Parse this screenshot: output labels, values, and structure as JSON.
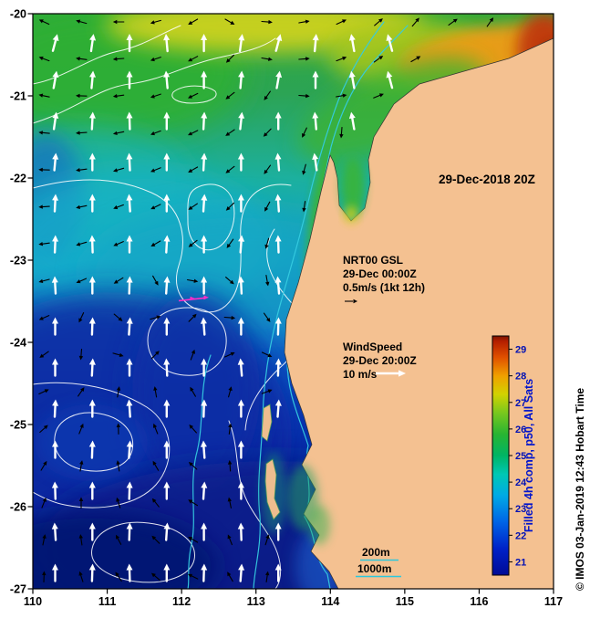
{
  "figure": {
    "datetime_label": "29-Dec-2018 20Z",
    "credit": "© IMOS 03-Jan-2019 12:43 Hobart Time"
  },
  "axes": {
    "x_ticks": [
      "110",
      "111",
      "112",
      "113",
      "114",
      "115",
      "116",
      "117"
    ],
    "y_ticks": [
      "-20",
      "-21",
      "-22",
      "-23",
      "-24",
      "-25",
      "-26",
      "-27"
    ]
  },
  "legends": {
    "current": [
      "NRT00 GSL",
      "29-Dec 00:00Z",
      "0.5m/s (1kt 12h)"
    ],
    "wind": [
      "WindSpeed",
      "29-Dec 20:00Z",
      "10 m/s"
    ],
    "bathymetry": [
      "200m",
      "1000m"
    ]
  },
  "colorbar": {
    "label": "Filled 4h comp, p50, All Sats",
    "ticks": [
      21,
      22,
      23,
      24,
      25,
      26,
      27,
      28,
      29
    ],
    "min": 20.5,
    "max": 29.5,
    "stops": [
      {
        "v": 20.5,
        "c": "#000a96"
      },
      {
        "v": 21.5,
        "c": "#0022c8"
      },
      {
        "v": 22.5,
        "c": "#0064e6"
      },
      {
        "v": 23.5,
        "c": "#00aae6"
      },
      {
        "v": 24.3,
        "c": "#00c8b4"
      },
      {
        "v": 25.0,
        "c": "#00b464"
      },
      {
        "v": 25.8,
        "c": "#28b432"
      },
      {
        "v": 26.6,
        "c": "#78c81e"
      },
      {
        "v": 27.3,
        "c": "#d2d200"
      },
      {
        "v": 28.0,
        "c": "#f0a000"
      },
      {
        "v": 28.7,
        "c": "#e05000"
      },
      {
        "v": 29.3,
        "c": "#b41e00"
      },
      {
        "v": 29.5,
        "c": "#781400"
      }
    ]
  },
  "map": {
    "lon_min": 110,
    "lon_max": 117,
    "lat_min": -27,
    "lat_max": -20,
    "land_color": "#f4c191",
    "wind_color": "#ffffff",
    "current_color": "#000000",
    "bathy_color": "#35cbe0",
    "track_color": "#ff2ec8"
  },
  "wind_field": {
    "rows": [
      {
        "lat": -20.35,
        "lon0": 110.3,
        "dlon": 0.5,
        "bearings": [
          15,
          8,
          0,
          355,
          0,
          8,
          15,
          5,
          350,
          345
        ]
      },
      {
        "lat": -20.8,
        "lon0": 110.3,
        "dlon": 0.5,
        "bearings": [
          10,
          5,
          0,
          355,
          0,
          5,
          10,
          0,
          350,
          345
        ]
      },
      {
        "lat": -21.3,
        "lon0": 110.3,
        "dlon": 0.5,
        "bearings": [
          8,
          3,
          358,
          0,
          3,
          6,
          0,
          355,
          350
        ]
      },
      {
        "lat": -21.8,
        "lon0": 110.3,
        "dlon": 0.5,
        "bearings": [
          5,
          0,
          357,
          0,
          3,
          0,
          355,
          352
        ]
      },
      {
        "lat": -22.3,
        "lon0": 110.3,
        "dlon": 0.5,
        "bearings": [
          3,
          0,
          356,
          0,
          4,
          0,
          356
        ]
      },
      {
        "lat": -22.8,
        "lon0": 110.3,
        "dlon": 0.5,
        "bearings": [
          2,
          358,
          0,
          3,
          0,
          4,
          358
        ]
      },
      {
        "lat": -23.3,
        "lon0": 110.3,
        "dlon": 0.5,
        "bearings": [
          357,
          0,
          2,
          4,
          0,
          357,
          355
        ]
      },
      {
        "lat": -23.8,
        "lon0": 110.3,
        "dlon": 0.5,
        "bearings": [
          0,
          2,
          4,
          0,
          356,
          0,
          2
        ]
      },
      {
        "lat": -24.3,
        "lon0": 110.3,
        "dlon": 0.5,
        "bearings": [
          0,
          3,
          0,
          357,
          0,
          355,
          2
        ]
      },
      {
        "lat": -24.8,
        "lon0": 110.3,
        "dlon": 0.5,
        "bearings": [
          3,
          0,
          356,
          0,
          2,
          0,
          4
        ]
      },
      {
        "lat": -25.3,
        "lon0": 110.3,
        "dlon": 0.5,
        "bearings": [
          0,
          2,
          4,
          0,
          356,
          0
        ]
      },
      {
        "lat": -25.8,
        "lon0": 110.3,
        "dlon": 0.5,
        "bearings": [
          358,
          0,
          2,
          0,
          4,
          0
        ]
      },
      {
        "lat": -26.3,
        "lon0": 110.3,
        "dlon": 0.5,
        "bearings": [
          356,
          0,
          2,
          4,
          0,
          358,
          0
        ]
      },
      {
        "lat": -26.8,
        "lon0": 110.3,
        "dlon": 0.5,
        "bearings": [
          0,
          2,
          358,
          0,
          2,
          4,
          0
        ]
      }
    ]
  },
  "current_field": {
    "rows": [
      {
        "lat": -20.1,
        "lon0": 110.15,
        "dlon": 0.5,
        "bearings": [
          295,
          285,
          270,
          255,
          240,
          120,
          95,
          80,
          65,
          50,
          40,
          55,
          35
        ]
      },
      {
        "lat": -20.55,
        "lon0": 110.15,
        "dlon": 0.5,
        "bearings": [
          290,
          278,
          265,
          252,
          242,
          225,
          100,
          85,
          70,
          55,
          60
        ]
      },
      {
        "lat": -21.0,
        "lon0": 110.15,
        "dlon": 0.5,
        "bearings": [
          282,
          272,
          262,
          252,
          244,
          232,
          215,
          95,
          80,
          68
        ]
      },
      {
        "lat": -21.45,
        "lon0": 110.15,
        "dlon": 0.5,
        "bearings": [
          276,
          266,
          258,
          250,
          244,
          236,
          224,
          205,
          185
        ]
      },
      {
        "lat": -21.9,
        "lon0": 110.15,
        "dlon": 0.5,
        "bearings": [
          272,
          262,
          254,
          248,
          240,
          232,
          216,
          195
        ]
      },
      {
        "lat": -22.35,
        "lon0": 110.15,
        "dlon": 0.5,
        "bearings": [
          266,
          258,
          250,
          244,
          236,
          226,
          208,
          188
        ]
      },
      {
        "lat": -22.8,
        "lon0": 110.15,
        "dlon": 0.5,
        "bearings": [
          262,
          254,
          246,
          240,
          232,
          216,
          196
        ]
      },
      {
        "lat": -23.25,
        "lon0": 110.15,
        "dlon": 0.5,
        "bearings": [
          256,
          246,
          238,
          150,
          100,
          130,
          170
        ]
      },
      {
        "lat": -23.7,
        "lon0": 110.15,
        "dlon": 0.5,
        "bearings": [
          246,
          205,
          130,
          75,
          45,
          95,
          145
        ]
      },
      {
        "lat": -24.15,
        "lon0": 110.15,
        "dlon": 0.5,
        "bearings": [
          235,
          185,
          105,
          45,
          20,
          65,
          115
        ]
      },
      {
        "lat": -24.6,
        "lon0": 110.15,
        "dlon": 0.5,
        "bearings": [
          65,
          35,
          10,
          350,
          330,
          15,
          70
        ]
      },
      {
        "lat": -25.05,
        "lon0": 110.15,
        "dlon": 0.5,
        "bearings": [
          48,
          22,
          358,
          338,
          318,
          8
        ]
      },
      {
        "lat": -25.5,
        "lon0": 110.15,
        "dlon": 0.5,
        "bearings": [
          32,
          10,
          350,
          330,
          312,
          356
        ]
      },
      {
        "lat": -25.95,
        "lon0": 110.15,
        "dlon": 0.5,
        "bearings": [
          22,
          0,
          342,
          322,
          302,
          348
        ]
      },
      {
        "lat": -26.4,
        "lon0": 110.15,
        "dlon": 0.5,
        "bearings": [
          12,
          352,
          332,
          315,
          300,
          338,
          18
        ]
      },
      {
        "lat": -26.85,
        "lon0": 110.15,
        "dlon": 0.5,
        "bearings": [
          2,
          342,
          326,
          310,
          296,
          330,
          8
        ]
      }
    ]
  }
}
